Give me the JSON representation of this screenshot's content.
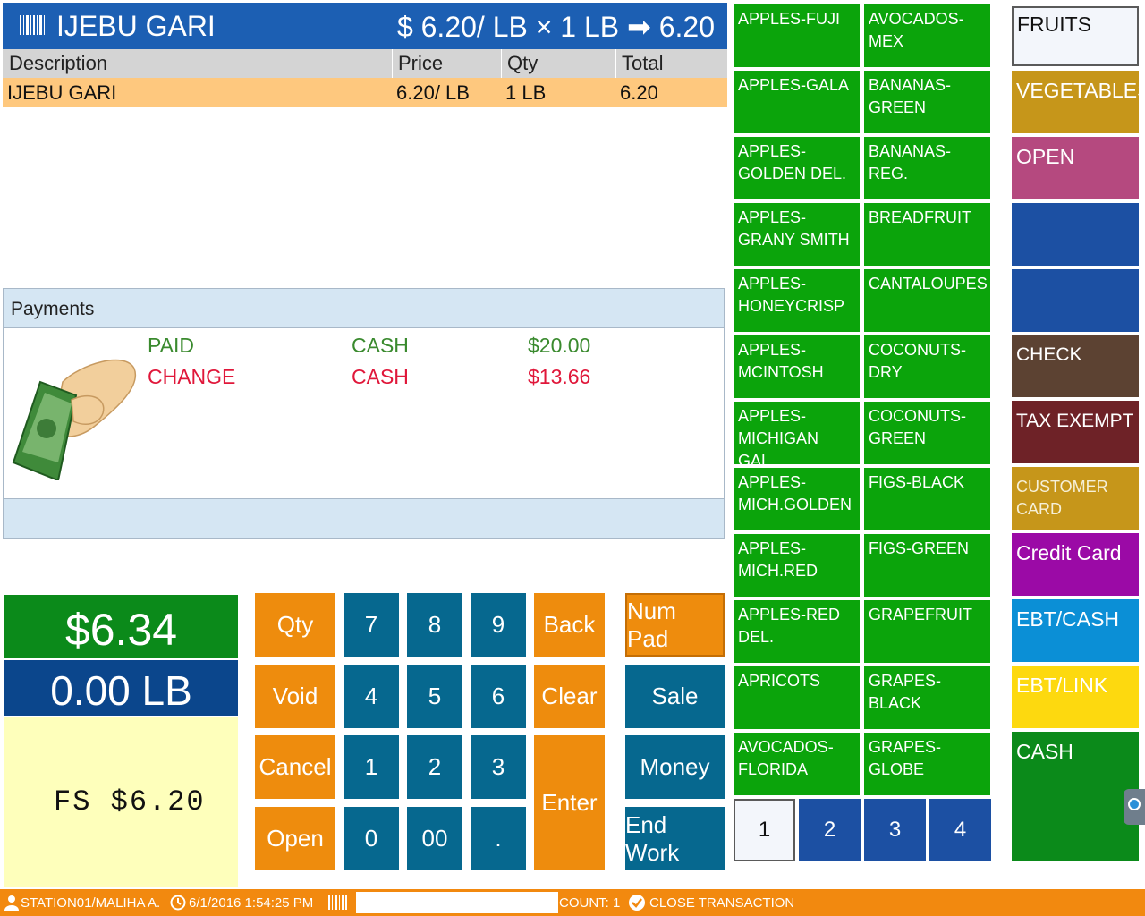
{
  "header": {
    "item_name": "IJEBU GARI",
    "price_formula": "$ 6.20/ LB × 1  LB ➡ 6.20"
  },
  "table": {
    "columns": [
      "Description",
      "Price",
      "Qty",
      "Total"
    ],
    "rows": [
      {
        "description": "IJEBU GARI",
        "price": "6.20/ LB",
        "qty": "1  LB",
        "total": "6.20"
      }
    ]
  },
  "payments": {
    "title": "Payments",
    "lines": [
      {
        "label": "PAID",
        "method": "CASH",
        "amount": "$20.00",
        "color": "#3a8a2e"
      },
      {
        "label": "CHANGE",
        "method": "CASH",
        "amount": "$13.66",
        "color": "#e0173a"
      }
    ]
  },
  "totals": {
    "total": "$6.34",
    "weight": "0.00 LB",
    "fs": "FS $6.20"
  },
  "keypad": {
    "qty": "Qty",
    "void": "Void",
    "cancel": "Cancel",
    "open": "Open",
    "k7": "7",
    "k8": "8",
    "k9": "9",
    "k4": "4",
    "k5": "5",
    "k6": "6",
    "k1": "1",
    "k2": "2",
    "k3": "3",
    "k0": "0",
    "k00": "00",
    "kdot": ".",
    "back": "Back",
    "clear": "Clear",
    "enter": "Enter",
    "numpad": "Num Pad",
    "sale": "Sale",
    "money": "Money",
    "endwork": "End Work"
  },
  "items": {
    "col1": [
      "APPLES-FUJI",
      "APPLES-GALA",
      "APPLES-GOLDEN DEL.",
      "APPLES-GRANY SMITH",
      "APPLES-HONEYCRISP",
      "APPLES-MCINTOSH",
      "APPLES-MICHIGAN GAL",
      "APPLES-MICH.GOLDEN",
      "APPLES-MICH.RED",
      "APPLES-RED DEL.",
      "APRICOTS",
      "AVOCADOS-FLORIDA"
    ],
    "col2": [
      "AVOCADOS-MEX",
      "BANANAS-GREEN",
      "BANANAS-REG.",
      "BREADFRUIT",
      "CANTALOUPES",
      "COCONUTS-DRY",
      "COCONUTS-GREEN",
      "FIGS-BLACK",
      "FIGS-GREEN",
      "GRAPEFRUIT",
      "GRAPES-BLACK",
      "GRAPES-GLOBE"
    ],
    "pages": [
      "1",
      "2",
      "3",
      "4"
    ],
    "active_page": "1"
  },
  "categories": {
    "fruits": "FRUITS",
    "vegetables": "VEGETABLES",
    "open": "OPEN",
    "check": "CHECK",
    "tax_exempt": "TAX EXEMPT",
    "customer_card": "CUSTOMER CARD",
    "credit_card": "Credit Card",
    "ebt_cash": "EBT/CASH",
    "ebt_link": "EBT/LINK",
    "cash": "CASH"
  },
  "status": {
    "user": "STATION01/MALIHA A.",
    "datetime": "6/1/2016 1:54:25 PM",
    "scan_value": "",
    "count": "COUNT: 1",
    "close": "CLOSE TRANSACTION"
  },
  "colors": {
    "header_blue": "#1c5fb3",
    "item_green": "#0ba40b",
    "key_orange": "#ee8c0d",
    "key_teal": "#06688f",
    "row_highlight": "#fec87e",
    "status_bar": "#f2890f"
  }
}
